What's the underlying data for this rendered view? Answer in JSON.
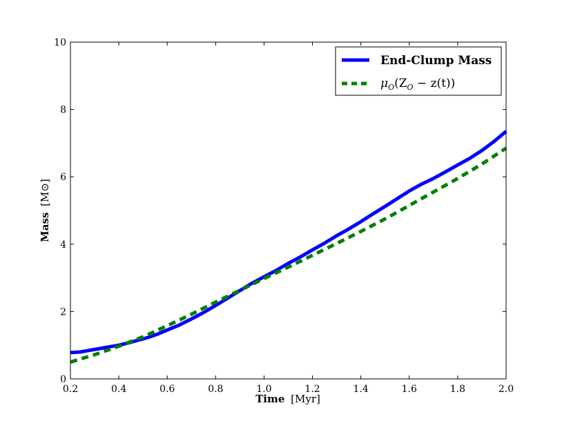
{
  "chart_data": {
    "type": "line",
    "xlabel_word": "Time",
    "xlabel_unit": "[Myr]",
    "ylabel_word": "Mass",
    "ylabel_unit": "[M⊙]",
    "xlim": [
      0.2,
      2.0
    ],
    "ylim": [
      0,
      10
    ],
    "x_ticks": [
      "0.2",
      "0.4",
      "0.6",
      "0.8",
      "1.0",
      "1.2",
      "1.4",
      "1.6",
      "1.8",
      "2.0"
    ],
    "y_ticks": [
      "0",
      "2",
      "4",
      "6",
      "8",
      "10"
    ],
    "grid": false,
    "legend_position": "top-right",
    "series": [
      {
        "name": "End-Clump Mass",
        "color": "#0000ff",
        "style": "solid",
        "x": [
          0.2,
          0.24,
          0.28,
          0.32,
          0.36,
          0.4,
          0.44,
          0.48,
          0.52,
          0.56,
          0.6,
          0.65,
          0.7,
          0.75,
          0.8,
          0.85,
          0.9,
          0.95,
          1.0,
          1.05,
          1.1,
          1.15,
          1.2,
          1.25,
          1.3,
          1.35,
          1.4,
          1.45,
          1.5,
          1.55,
          1.6,
          1.65,
          1.7,
          1.75,
          1.8,
          1.85,
          1.9,
          1.95,
          2.0
        ],
        "y": [
          0.78,
          0.8,
          0.85,
          0.9,
          0.95,
          1.0,
          1.07,
          1.15,
          1.23,
          1.33,
          1.45,
          1.6,
          1.78,
          1.97,
          2.18,
          2.4,
          2.62,
          2.84,
          3.03,
          3.22,
          3.43,
          3.62,
          3.83,
          4.03,
          4.25,
          4.45,
          4.67,
          4.9,
          5.12,
          5.35,
          5.58,
          5.78,
          5.95,
          6.15,
          6.35,
          6.55,
          6.78,
          7.05,
          7.35
        ]
      },
      {
        "name": "μo(Zo − z(t))",
        "color": "#008000",
        "style": "dashed",
        "x": [
          0.2,
          0.3,
          0.4,
          0.5,
          0.6,
          0.7,
          0.8,
          0.9,
          1.0,
          1.1,
          1.2,
          1.3,
          1.4,
          1.5,
          1.6,
          1.7,
          1.8,
          1.9,
          2.0
        ],
        "y": [
          0.5,
          0.72,
          0.97,
          1.25,
          1.58,
          1.92,
          2.28,
          2.63,
          2.98,
          3.32,
          3.67,
          4.02,
          4.38,
          4.75,
          5.15,
          5.55,
          5.95,
          6.38,
          6.85
        ]
      }
    ],
    "legend_labels": {
      "series0": "End-Clump Mass",
      "series1_mu": "μ",
      "series1_mu_sub": "O",
      "series1_open": "(Z",
      "series1_z_sub": "O",
      "series1_rest": " − z(t))"
    }
  }
}
